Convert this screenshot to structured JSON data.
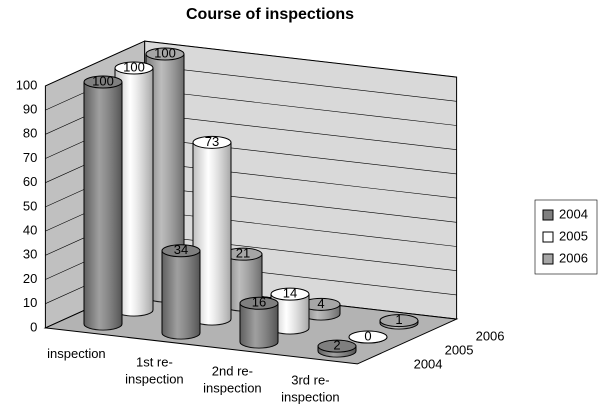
{
  "chart_data": {
    "type": "bar3d",
    "title": "Course of inspections",
    "categories": [
      "inspection",
      "1st re-inspection",
      "2nd re-inspection",
      "3rd re-inspection"
    ],
    "series": [
      {
        "name": "2004",
        "color": "#7f7f7f",
        "values": [
          100,
          34,
          16,
          2
        ]
      },
      {
        "name": "2005",
        "color": "#ffffff",
        "values": [
          100,
          73,
          14,
          0
        ]
      },
      {
        "name": "2006",
        "color": "#a6a6a6",
        "values": [
          100,
          21,
          4,
          1
        ]
      }
    ],
    "ylim": [
      0,
      100
    ],
    "yticks": [
      0,
      10,
      20,
      30,
      40,
      50,
      60,
      70,
      80,
      90,
      100
    ],
    "grid": true,
    "legend": "right"
  }
}
